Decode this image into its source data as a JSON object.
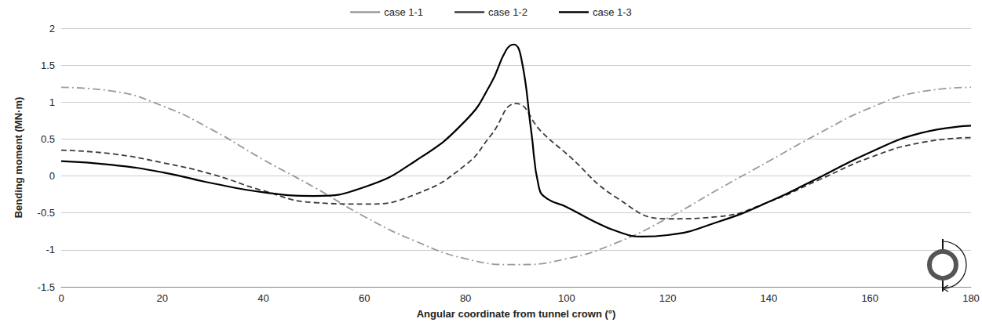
{
  "chart_data": {
    "type": "line",
    "x_label": "Angular coordinate from tunnel crown (°)",
    "y_label": "Bending moment (MN·m)",
    "xlim": [
      0,
      180
    ],
    "xticks": [
      0,
      20,
      40,
      60,
      80,
      100,
      120,
      140,
      160,
      180
    ],
    "ylim": [
      -1.5,
      2
    ],
    "yticks": [
      -1.5,
      -1,
      -0.5,
      0,
      0.5,
      1,
      1.5,
      2
    ],
    "grid": true,
    "legend": "top",
    "series": [
      {
        "name": "case 1-1",
        "color": "#9a9a9a",
        "line_style": "dashdot",
        "x": [
          0,
          10,
          20,
          30,
          40,
          50,
          60,
          70,
          80,
          90,
          100,
          110,
          120,
          130,
          140,
          150,
          160,
          170,
          180
        ],
        "values": [
          1.2,
          1.15,
          0.95,
          0.62,
          0.22,
          -0.15,
          -0.55,
          -0.88,
          -1.12,
          -1.2,
          -1.12,
          -0.9,
          -0.57,
          -0.18,
          0.2,
          0.58,
          0.92,
          1.14,
          1.2
        ]
      },
      {
        "name": "case 1-2",
        "color": "#3a3a3a",
        "line_style": "dashed",
        "x": [
          0,
          10,
          20,
          30,
          40,
          50,
          60,
          70,
          80,
          85,
          90,
          95,
          100,
          110,
          120,
          130,
          140,
          150,
          160,
          170,
          180
        ],
        "values": [
          0.35,
          0.3,
          0.18,
          0.02,
          -0.2,
          -0.36,
          -0.38,
          -0.25,
          0.15,
          0.55,
          0.98,
          0.6,
          0.3,
          -0.3,
          -0.58,
          -0.55,
          -0.35,
          -0.05,
          0.25,
          0.45,
          0.52
        ]
      },
      {
        "name": "case 1-3",
        "color": "#000000",
        "line_style": "solid",
        "x": [
          0,
          10,
          20,
          30,
          40,
          50,
          60,
          70,
          80,
          85,
          88,
          89.5,
          91,
          93,
          94.5,
          96,
          100,
          105,
          110,
          115,
          120,
          130,
          140,
          150,
          160,
          170,
          180
        ],
        "values": [
          0.2,
          0.15,
          0.05,
          -0.1,
          -0.22,
          -0.27,
          -0.15,
          0.2,
          0.75,
          1.25,
          1.7,
          1.78,
          1.6,
          0.6,
          -0.15,
          -0.3,
          -0.42,
          -0.6,
          -0.75,
          -0.82,
          -0.8,
          -0.62,
          -0.35,
          -0.02,
          0.32,
          0.58,
          0.68
        ]
      }
    ]
  }
}
